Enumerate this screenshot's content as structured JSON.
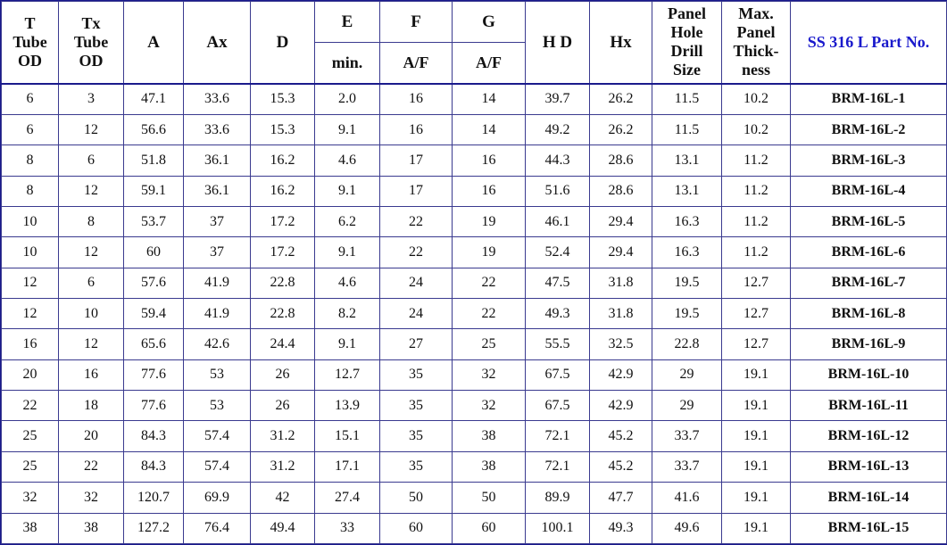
{
  "headers": {
    "t_tube_od": [
      "T",
      "Tube",
      "OD"
    ],
    "tx_tube_od": [
      "Tx",
      "Tube",
      "OD"
    ],
    "a": "A",
    "ax": "Ax",
    "d": "D",
    "e": "E",
    "e_sub": "min.",
    "f": "F",
    "f_sub": "A/F",
    "g": "G",
    "g_sub": "A/F",
    "hd": "H D",
    "hx": "Hx",
    "panel_hole": [
      "Panel",
      "Hole",
      "Drill",
      "Size"
    ],
    "max_panel": [
      "Max.",
      "Panel",
      "Thick-",
      "ness"
    ],
    "part_no": "SS 316 L Part No."
  },
  "rows": [
    [
      "6",
      "3",
      "47.1",
      "33.6",
      "15.3",
      "2.0",
      "16",
      "14",
      "39.7",
      "26.2",
      "11.5",
      "10.2",
      "BRM-16L-1"
    ],
    [
      "6",
      "12",
      "56.6",
      "33.6",
      "15.3",
      "9.1",
      "16",
      "14",
      "49.2",
      "26.2",
      "11.5",
      "10.2",
      "BRM-16L-2"
    ],
    [
      "8",
      "6",
      "51.8",
      "36.1",
      "16.2",
      "4.6",
      "17",
      "16",
      "44.3",
      "28.6",
      "13.1",
      "11.2",
      "BRM-16L-3"
    ],
    [
      "8",
      "12",
      "59.1",
      "36.1",
      "16.2",
      "9.1",
      "17",
      "16",
      "51.6",
      "28.6",
      "13.1",
      "11.2",
      "BRM-16L-4"
    ],
    [
      "10",
      "8",
      "53.7",
      "37",
      "17.2",
      "6.2",
      "22",
      "19",
      "46.1",
      "29.4",
      "16.3",
      "11.2",
      "BRM-16L-5"
    ],
    [
      "10",
      "12",
      "60",
      "37",
      "17.2",
      "9.1",
      "22",
      "19",
      "52.4",
      "29.4",
      "16.3",
      "11.2",
      "BRM-16L-6"
    ],
    [
      "12",
      "6",
      "57.6",
      "41.9",
      "22.8",
      "4.6",
      "24",
      "22",
      "47.5",
      "31.8",
      "19.5",
      "12.7",
      "BRM-16L-7"
    ],
    [
      "12",
      "10",
      "59.4",
      "41.9",
      "22.8",
      "8.2",
      "24",
      "22",
      "49.3",
      "31.8",
      "19.5",
      "12.7",
      "BRM-16L-8"
    ],
    [
      "16",
      "12",
      "65.6",
      "42.6",
      "24.4",
      "9.1",
      "27",
      "25",
      "55.5",
      "32.5",
      "22.8",
      "12.7",
      "BRM-16L-9"
    ],
    [
      "20",
      "16",
      "77.6",
      "53",
      "26",
      "12.7",
      "35",
      "32",
      "67.5",
      "42.9",
      "29",
      "19.1",
      "BRM-16L-10"
    ],
    [
      "22",
      "18",
      "77.6",
      "53",
      "26",
      "13.9",
      "35",
      "32",
      "67.5",
      "42.9",
      "29",
      "19.1",
      "BRM-16L-11"
    ],
    [
      "25",
      "20",
      "84.3",
      "57.4",
      "31.2",
      "15.1",
      "35",
      "38",
      "72.1",
      "45.2",
      "33.7",
      "19.1",
      "BRM-16L-12"
    ],
    [
      "25",
      "22",
      "84.3",
      "57.4",
      "31.2",
      "17.1",
      "35",
      "38",
      "72.1",
      "45.2",
      "33.7",
      "19.1",
      "BRM-16L-13"
    ],
    [
      "32",
      "32",
      "120.7",
      "69.9",
      "42",
      "27.4",
      "50",
      "50",
      "89.9",
      "47.7",
      "41.6",
      "19.1",
      "BRM-16L-14"
    ],
    [
      "38",
      "38",
      "127.2",
      "76.4",
      "49.4",
      "33",
      "60",
      "60",
      "100.1",
      "49.3",
      "49.6",
      "19.1",
      "BRM-16L-15"
    ]
  ],
  "colors": {
    "border": "#3a3a8f",
    "part_header": "#1a1acc",
    "text": "#111111"
  }
}
